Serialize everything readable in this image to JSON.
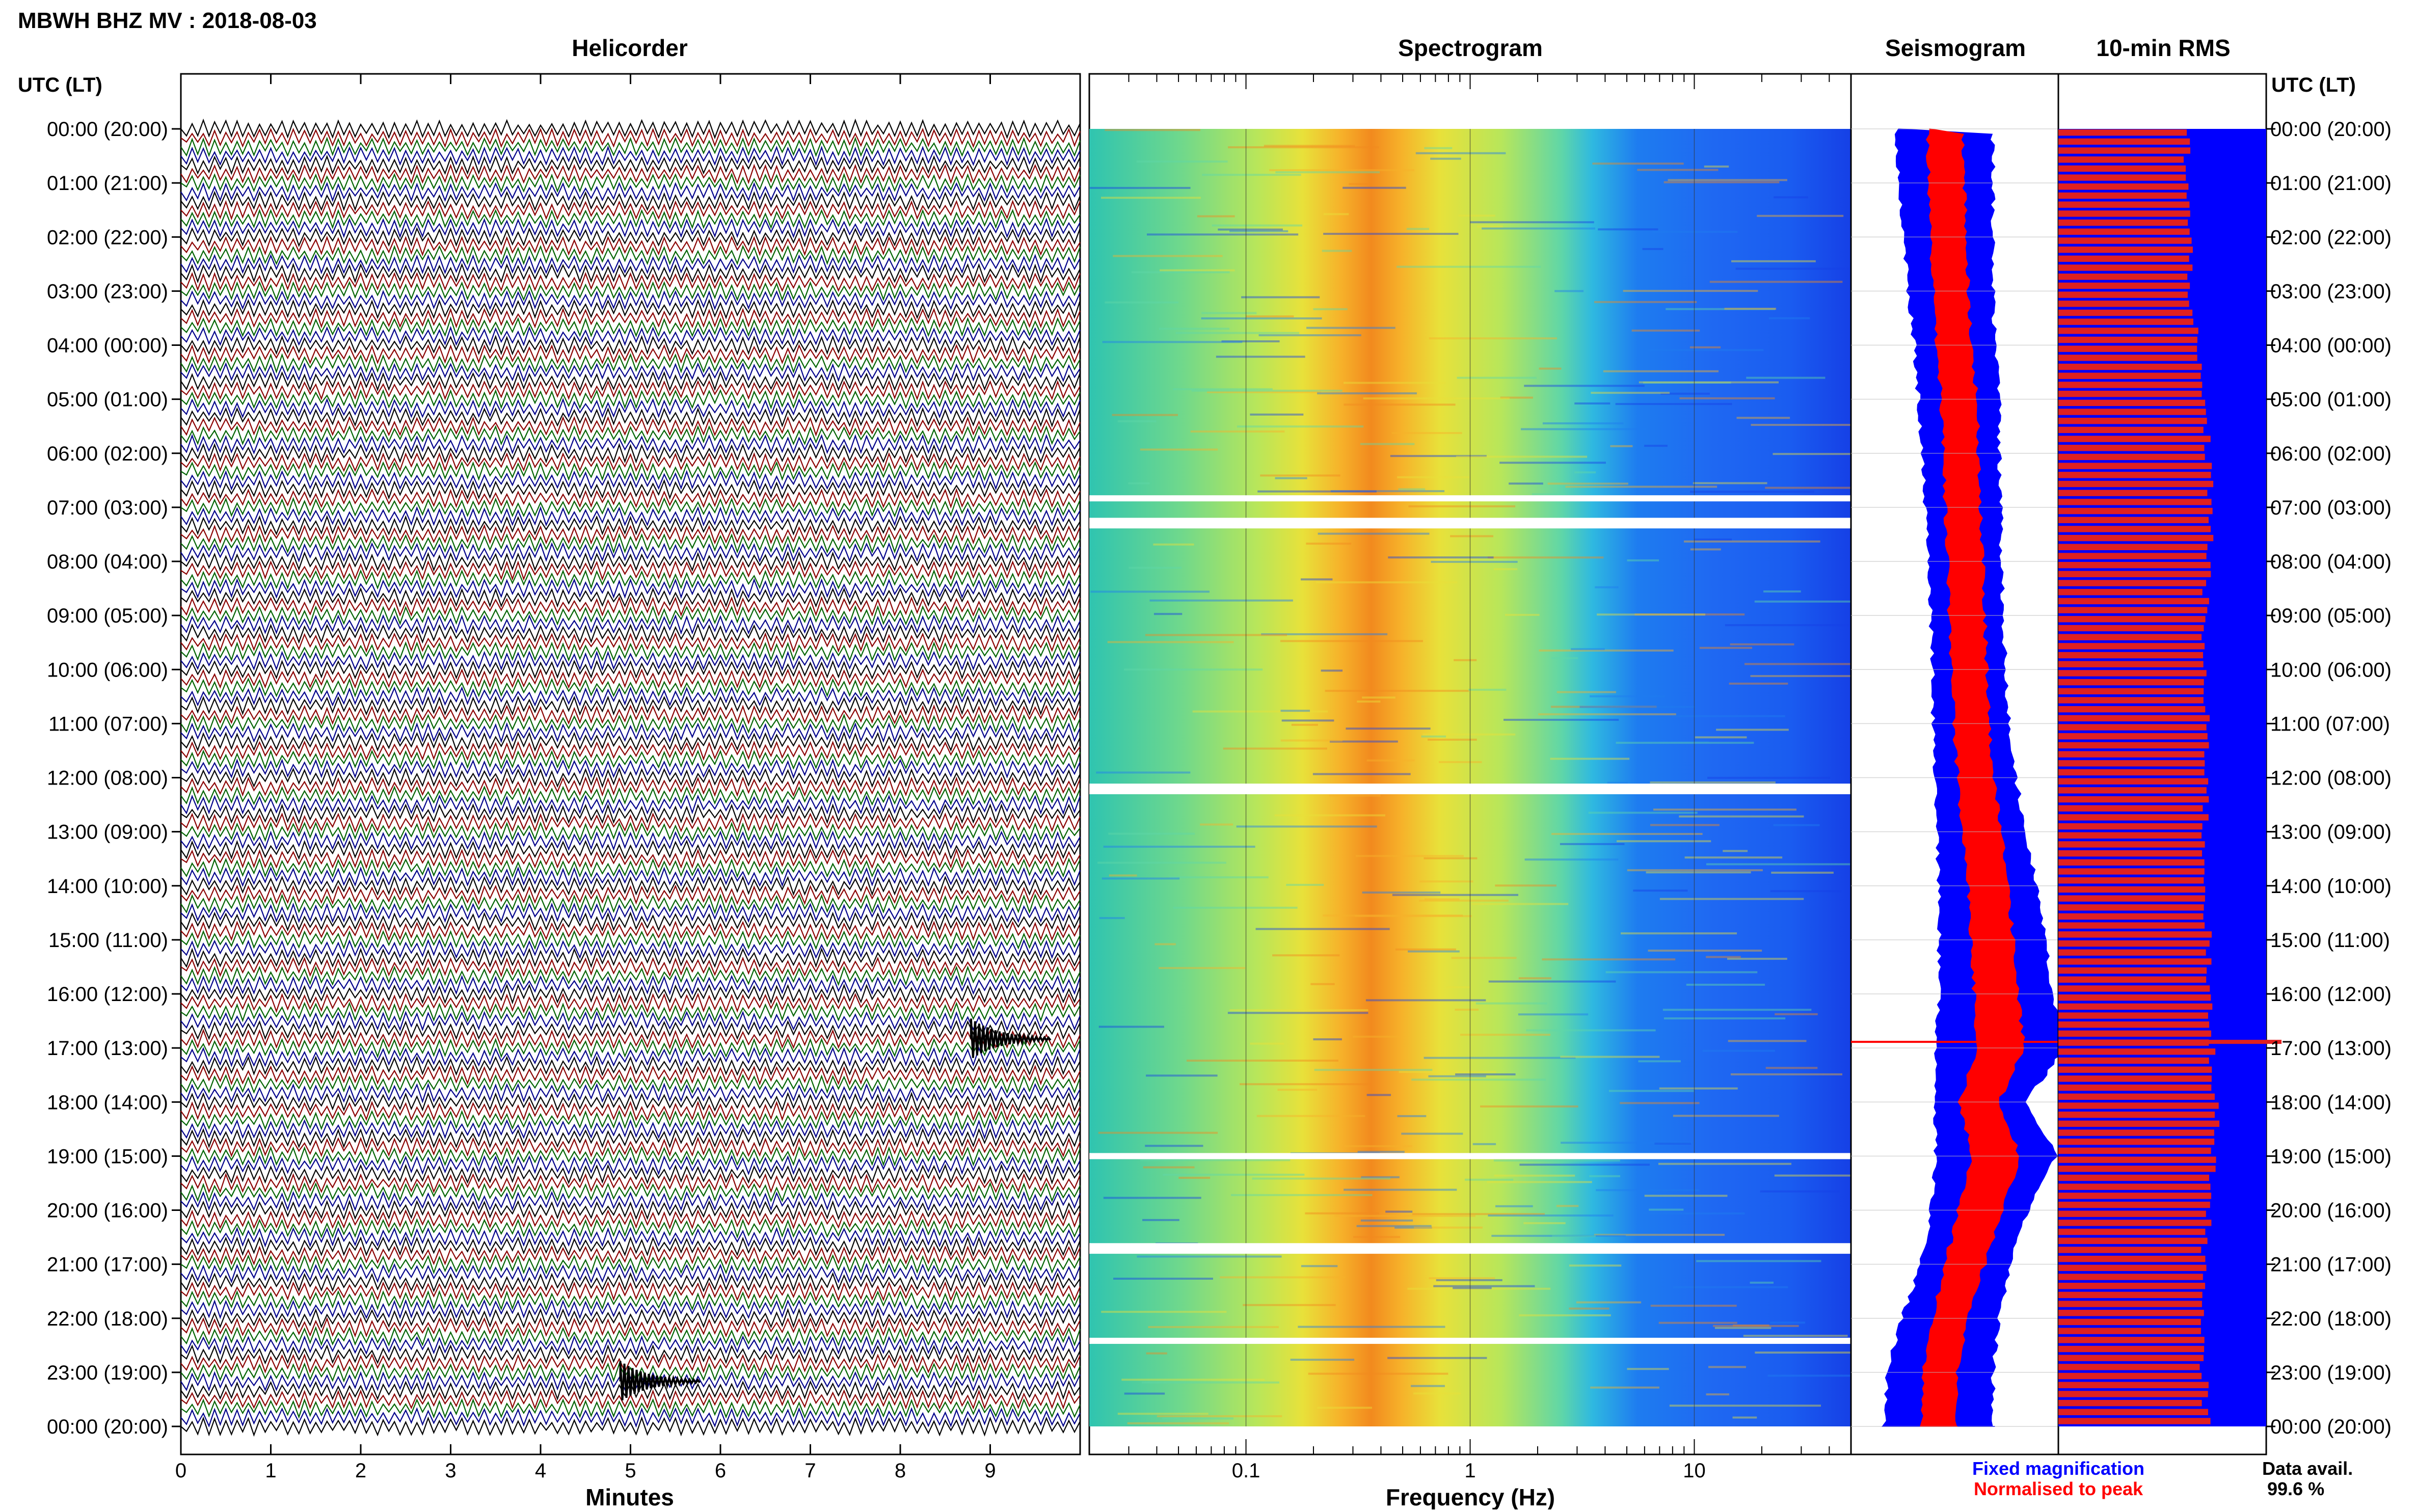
{
  "header": {
    "title": "MBWH BHZ MV : 2018-08-03",
    "utc_label_left": "UTC (LT)",
    "utc_label_right": "UTC (LT)"
  },
  "panels": {
    "helicorder": "Helicorder",
    "spectrogram": "Spectrogram",
    "seismogram": "Seismogram",
    "rms": "10-min RMS"
  },
  "legend": {
    "fixed": "Fixed magnification",
    "normalised": "Normalised to peak",
    "fixed_color": "#0000ff",
    "normalised_color": "#ff0000"
  },
  "availability": {
    "label": "Data avail.",
    "value": "99.6 %"
  },
  "colors": {
    "trace_cycle": [
      "#000000",
      "#8b0000",
      "#006400",
      "#00008b"
    ],
    "fixed": "#0000ff",
    "normalised": "#ff0000",
    "rms_fixed": "#0000ff",
    "rms_normalised": "#e02020"
  },
  "chart_data": {
    "type": "heatmap",
    "time_labels": [
      "00:00 (20:00)",
      "01:00 (21:00)",
      "02:00 (22:00)",
      "03:00 (23:00)",
      "04:00 (00:00)",
      "05:00 (01:00)",
      "06:00 (02:00)",
      "07:00 (03:00)",
      "08:00 (04:00)",
      "09:00 (05:00)",
      "10:00 (06:00)",
      "11:00 (07:00)",
      "12:00 (08:00)",
      "13:00 (09:00)",
      "14:00 (10:00)",
      "15:00 (11:00)",
      "16:00 (12:00)",
      "17:00 (13:00)",
      "18:00 (14:00)",
      "19:00 (15:00)",
      "20:00 (16:00)",
      "21:00 (17:00)",
      "22:00 (18:00)",
      "23:00 (19:00)",
      "00:00 (20:00)"
    ],
    "helicorder": {
      "xlabel": "Minutes",
      "xlim": [
        0,
        10
      ],
      "xticks": [
        "0",
        "1",
        "2",
        "3",
        "4",
        "5",
        "6",
        "7",
        "8",
        "9"
      ],
      "lines_per_hour": 6,
      "events": [
        {
          "time_utc": "16:50",
          "minute": 8.9,
          "note": "event"
        },
        {
          "time_utc": "23:10",
          "minute": 5.0,
          "note": "event"
        }
      ]
    },
    "spectrogram": {
      "xlabel": "Frequency (Hz)",
      "scale": "log",
      "xlim": [
        0.02,
        50
      ],
      "xticks": [
        "0.1",
        "1",
        "10"
      ],
      "dominant_band_hz": [
        0.2,
        0.5
      ],
      "gaps_utc": [
        "06:50",
        "07:15",
        "07:20",
        "12:10",
        "12:15",
        "19:00",
        "20:40",
        "20:45",
        "22:25"
      ]
    },
    "seismogram": {
      "series": [
        {
          "name": "Fixed magnification",
          "half_width_rel": [
            0.22,
            0.21,
            0.2,
            0.19,
            0.18,
            0.18,
            0.17,
            0.17,
            0.16,
            0.16,
            0.16,
            0.17,
            0.18,
            0.2,
            0.22,
            0.24,
            0.26,
            0.3,
            0.2,
            0.28,
            0.22,
            0.2,
            0.22,
            0.24,
            0.25
          ]
        },
        {
          "name": "Normalised to peak",
          "half_width_rel": [
            0.07,
            0.07,
            0.07,
            0.07,
            0.07,
            0.07,
            0.07,
            0.07,
            0.07,
            0.07,
            0.07,
            0.07,
            0.07,
            0.08,
            0.08,
            0.09,
            0.09,
            0.1,
            0.08,
            0.1,
            0.09,
            0.08,
            0.07,
            0.07,
            0.07
          ]
        }
      ],
      "center_rel": [
        0.45,
        0.46,
        0.47,
        0.48,
        0.5,
        0.52,
        0.53,
        0.54,
        0.55,
        0.56,
        0.57,
        0.58,
        0.6,
        0.63,
        0.66,
        0.68,
        0.7,
        0.72,
        0.62,
        0.7,
        0.62,
        0.55,
        0.48,
        0.43,
        0.42
      ],
      "spike_utc": "17:00"
    },
    "rms": {
      "series": [
        {
          "name": "Fixed magnification",
          "value_rel": 1.0
        },
        {
          "name": "Normalised to peak",
          "values_rel": [
            0.62,
            0.62,
            0.63,
            0.64,
            0.66,
            0.7,
            0.72,
            0.74,
            0.72,
            0.7,
            0.7,
            0.71,
            0.72,
            0.7,
            0.71,
            0.72,
            0.72,
            0.74,
            0.76,
            0.75,
            0.72,
            0.7,
            0.68,
            0.7,
            0.72
          ]
        }
      ],
      "spike_utc": "17:00"
    }
  }
}
